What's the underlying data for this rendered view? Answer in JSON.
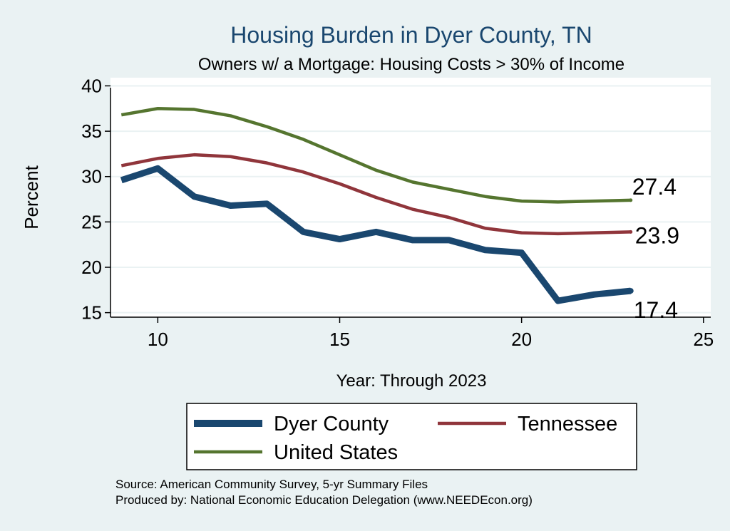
{
  "chart_data": {
    "type": "line",
    "title": "Housing Burden in Dyer County, TN",
    "subtitle": "Owners w/ a Mortgage: Housing Costs > 30% of Income",
    "xlabel": "Year: Through 2023",
    "ylabel": "Percent",
    "xlim": [
      8.7,
      25.2
    ],
    "ylim": [
      14.5,
      40.9
    ],
    "xticks": [
      10,
      15,
      20,
      25
    ],
    "yticks": [
      15,
      20,
      25,
      30,
      35,
      40
    ],
    "grid": true,
    "legend_position": "bottom",
    "x": [
      9,
      10,
      11,
      12,
      13,
      14,
      15,
      16,
      17,
      18,
      19,
      20,
      21,
      22,
      23
    ],
    "series": [
      {
        "name": "Dyer County",
        "color": "#1a476f",
        "values": [
          29.6,
          30.9,
          27.8,
          26.8,
          27.0,
          23.9,
          23.1,
          23.9,
          23.0,
          23.0,
          21.9,
          21.6,
          16.3,
          17.0,
          17.4
        ],
        "end_label": "17.4"
      },
      {
        "name": "Tennessee",
        "color": "#90353b",
        "values": [
          31.2,
          32.0,
          32.4,
          32.2,
          31.5,
          30.5,
          29.2,
          27.7,
          26.4,
          25.5,
          24.3,
          23.8,
          23.7,
          23.8,
          23.9
        ],
        "end_label": "23.9"
      },
      {
        "name": "United States",
        "color": "#55752f",
        "values": [
          36.8,
          37.5,
          37.4,
          36.7,
          35.5,
          34.1,
          32.4,
          30.7,
          29.4,
          28.6,
          27.8,
          27.3,
          27.2,
          27.3,
          27.4
        ],
        "end_label": "27.4"
      }
    ]
  },
  "footer": {
    "source": "Source: American Community Survey, 5-yr Summary Files",
    "produced_by": "Produced by: National Economic Education Delegation (www.NEEDEcon.org)"
  }
}
